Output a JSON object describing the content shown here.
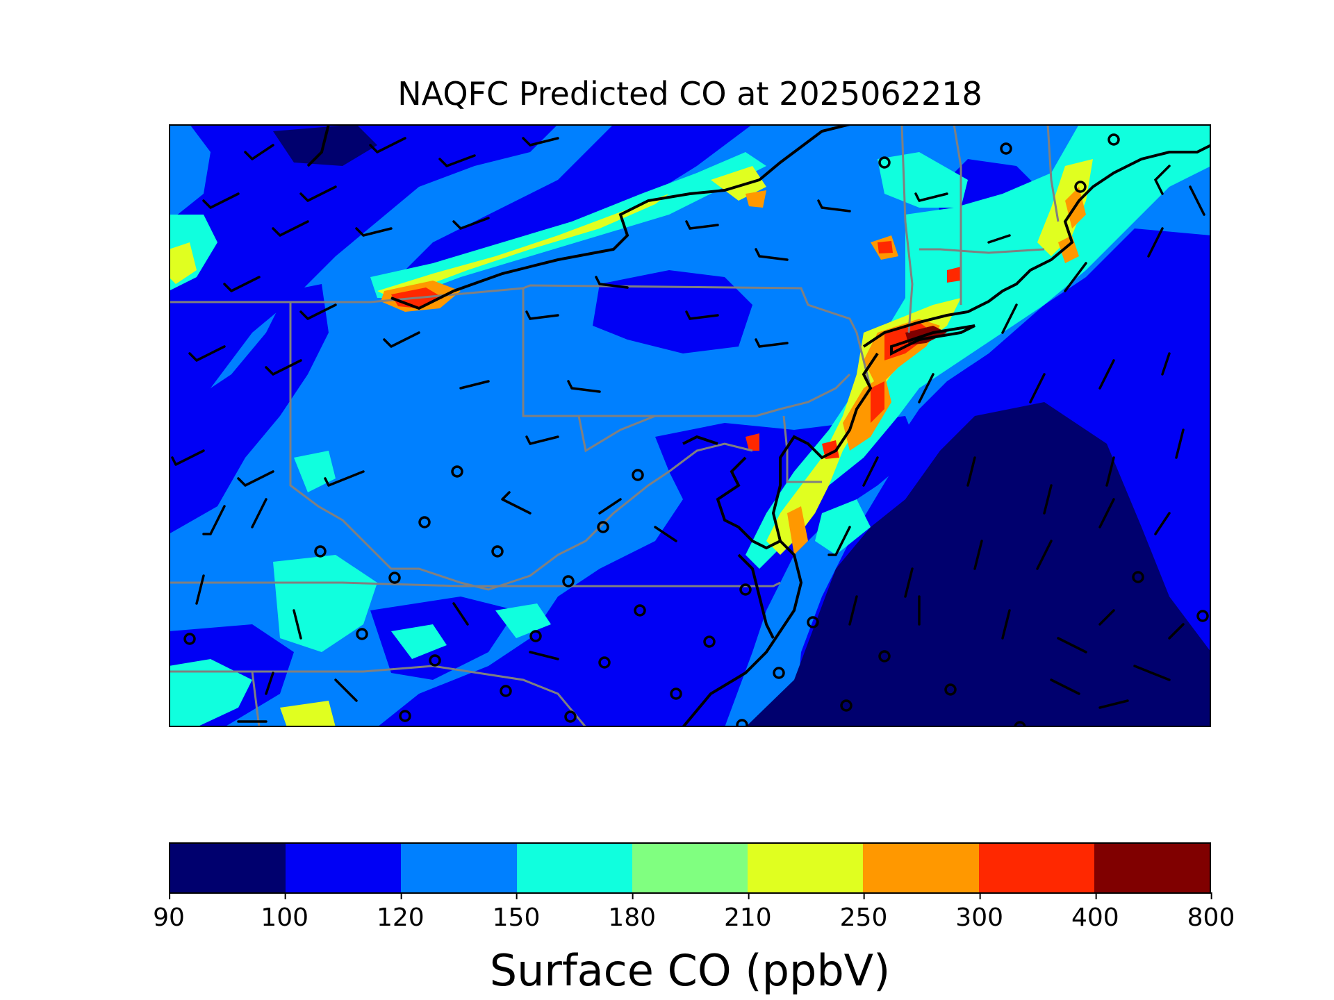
{
  "title": "NAQFC Predicted CO at 2025062218",
  "colorbar": {
    "label": "Surface CO (ppbV)",
    "ticks": [
      "90",
      "100",
      "120",
      "150",
      "180",
      "210",
      "250",
      "300",
      "400",
      "800"
    ],
    "colors": [
      "#00006e",
      "#0000f5",
      "#0080ff",
      "#10ffde",
      "#80ff80",
      "#e0ff20",
      "#ff9800",
      "#ff2800",
      "#800000"
    ]
  },
  "map": {
    "background_level_color": "#0080ff",
    "coastline_color": "#000000",
    "state_border_color": "#808080",
    "wind_barb_color": "#000000"
  }
}
